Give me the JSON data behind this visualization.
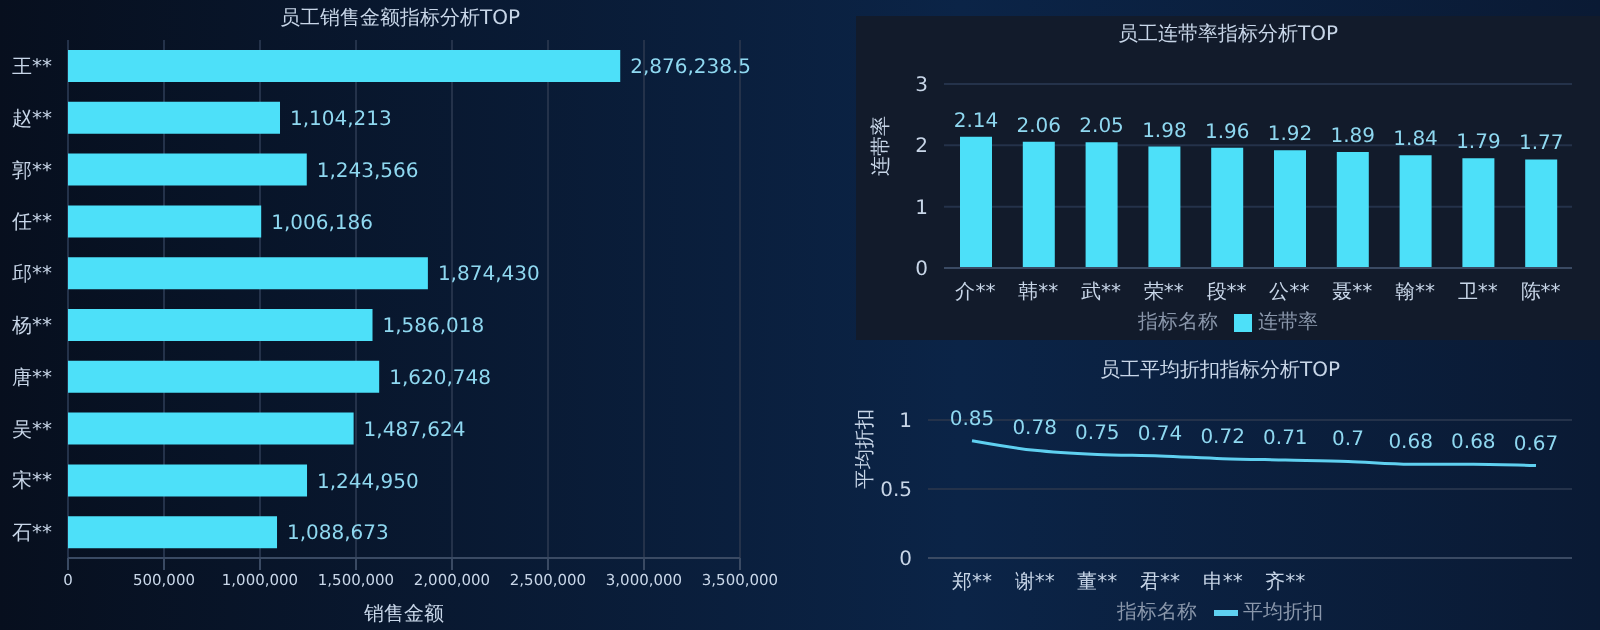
{
  "chart_data": [
    {
      "type": "bar",
      "orientation": "horizontal",
      "title": "员工销售金额指标分析TOP",
      "xlabel": "销售金额",
      "categories": [
        "王**",
        "赵**",
        "郭**",
        "任**",
        "邱**",
        "杨**",
        "唐**",
        "吴**",
        "宋**",
        "石**"
      ],
      "series": [
        {
          "color": "#4de0f9",
          "values": [
            2876238.5,
            1104213,
            1243566,
            1006186,
            1874430,
            1586018,
            1620748,
            1487624,
            1244950,
            1088673
          ],
          "value_labels": [
            "2,876,238.5",
            "1,104,213",
            "1,243,566",
            "1,006,186",
            "1,874,430",
            "1,586,018",
            "1,620,748",
            "1,487,624",
            "1,244,950",
            "1,088,673"
          ]
        }
      ],
      "xlim": [
        0,
        3500000
      ],
      "xticks": [
        0,
        {
          "value": 500000,
          "label": "500,000"
        },
        {
          "value": 1000000,
          "label": "1,000,000"
        },
        {
          "value": 1500000,
          "label": "1,500,000"
        },
        {
          "value": 2000000,
          "label": "2,000,000"
        },
        {
          "value": 2500000,
          "label": "2,500,000"
        },
        {
          "value": 3000000,
          "label": "3,000,000"
        },
        {
          "value": 3500000,
          "label": "3,500,000"
        }
      ],
      "grid": "x",
      "legend": false
    },
    {
      "type": "bar",
      "title": "员工连带率指标分析TOP",
      "ylabel": "连带率",
      "legend_title": "指标名称",
      "categories": [
        "介**",
        "韩**",
        "武**",
        "荣**",
        "段**",
        "公**",
        "聂**",
        "翰**",
        "卫**",
        "陈**"
      ],
      "series": [
        {
          "name": "连带率",
          "color": "#4de0f9",
          "values": [
            2.14,
            2.06,
            2.05,
            1.98,
            1.96,
            1.92,
            1.89,
            1.84,
            1.79,
            1.77
          ]
        }
      ],
      "ylim": [
        0,
        3
      ],
      "yticks": [
        0,
        1,
        2,
        3
      ],
      "grid": "y",
      "data_labels": true,
      "legend": "bottom"
    },
    {
      "type": "line",
      "title": "员工平均折扣指标分析TOP",
      "ylabel": "平均折扣",
      "legend_title": "指标名称",
      "categories": [
        "郑**",
        "谢**",
        "董**",
        "君**",
        "申**",
        "齐**",
        null,
        null,
        null,
        null
      ],
      "series": [
        {
          "name": "平均折扣",
          "color": "#5fd0f0",
          "values": [
            0.85,
            0.78,
            0.75,
            0.74,
            0.72,
            0.71,
            0.7,
            0.68,
            0.68,
            0.67
          ]
        }
      ],
      "ylim": [
        0,
        1
      ],
      "yticks": [
        0,
        0.5,
        1
      ],
      "grid": "y",
      "marker": "none",
      "line_style": "solid",
      "data_labels": true,
      "legend": "bottom"
    }
  ]
}
